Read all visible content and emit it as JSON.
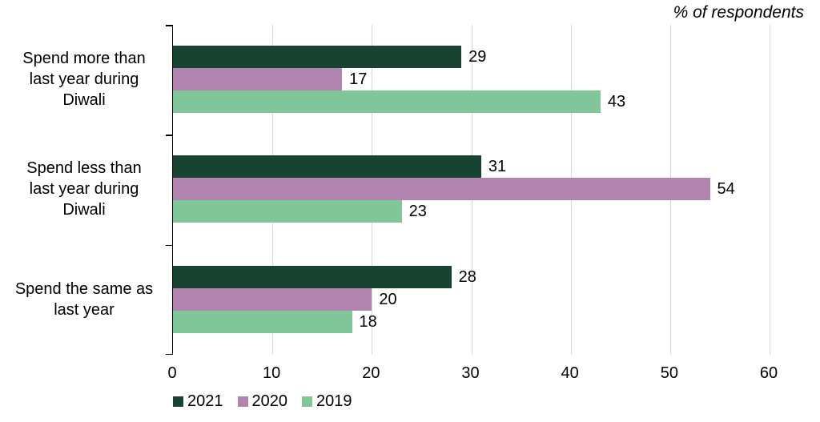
{
  "chart_data": {
    "type": "bar",
    "orientation": "horizontal",
    "title": "% of respondents",
    "categories": [
      "Spend more than\nlast year during\nDiwali",
      "Spend less than\nlast year during\nDiwali",
      "Spend the same as\nlast year"
    ],
    "series": [
      {
        "name": "2021",
        "color": "#184331",
        "values": [
          29,
          31,
          28
        ]
      },
      {
        "name": "2020",
        "color": "#b184af",
        "values": [
          17,
          54,
          20
        ]
      },
      {
        "name": "2019",
        "color": "#80c698",
        "values": [
          43,
          23,
          18
        ]
      }
    ],
    "xlim": [
      0,
      60
    ],
    "xticks": [
      0,
      10,
      20,
      30,
      40,
      50,
      60
    ],
    "grid": true,
    "gridline_color": "#d9d9d9",
    "axis_color": "#000000",
    "legend_position": "bottom",
    "data_labels": true
  }
}
